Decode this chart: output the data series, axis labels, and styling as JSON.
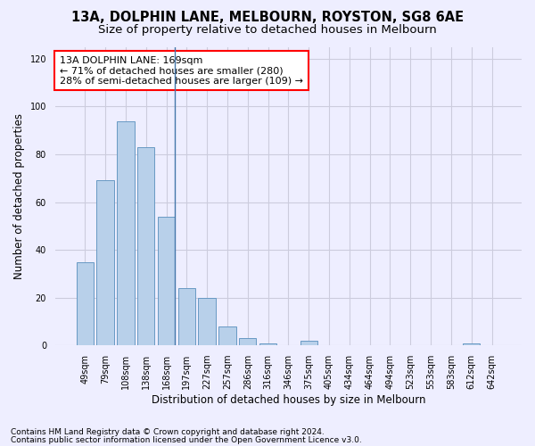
{
  "title": "13A, DOLPHIN LANE, MELBOURN, ROYSTON, SG8 6AE",
  "subtitle": "Size of property relative to detached houses in Melbourn",
  "xlabel": "Distribution of detached houses by size in Melbourn",
  "ylabel": "Number of detached properties",
  "categories": [
    "49sqm",
    "79sqm",
    "108sqm",
    "138sqm",
    "168sqm",
    "197sqm",
    "227sqm",
    "257sqm",
    "286sqm",
    "316sqm",
    "346sqm",
    "375sqm",
    "405sqm",
    "434sqm",
    "464sqm",
    "494sqm",
    "523sqm",
    "553sqm",
    "583sqm",
    "612sqm",
    "642sqm"
  ],
  "values": [
    35,
    69,
    94,
    83,
    54,
    24,
    20,
    8,
    3,
    1,
    0,
    2,
    0,
    0,
    0,
    0,
    0,
    0,
    0,
    1,
    0
  ],
  "bar_color": "#b8d0ea",
  "bar_edge_color": "#6899c4",
  "vline_x_index": 4,
  "vline_color": "#4477aa",
  "annotation_text": "13A DOLPHIN LANE: 169sqm\n← 71% of detached houses are smaller (280)\n28% of semi-detached houses are larger (109) →",
  "annotation_box_color": "white",
  "annotation_box_edge": "red",
  "ylim": [
    0,
    125
  ],
  "yticks": [
    0,
    20,
    40,
    60,
    80,
    100,
    120
  ],
  "footer1": "Contains HM Land Registry data © Crown copyright and database right 2024.",
  "footer2": "Contains public sector information licensed under the Open Government Licence v3.0.",
  "bg_color": "#eeeeff",
  "grid_color": "#ccccdd",
  "title_fontsize": 10.5,
  "subtitle_fontsize": 9.5,
  "axis_label_fontsize": 8.5,
  "tick_fontsize": 7,
  "annotation_fontsize": 8,
  "footer_fontsize": 6.5
}
